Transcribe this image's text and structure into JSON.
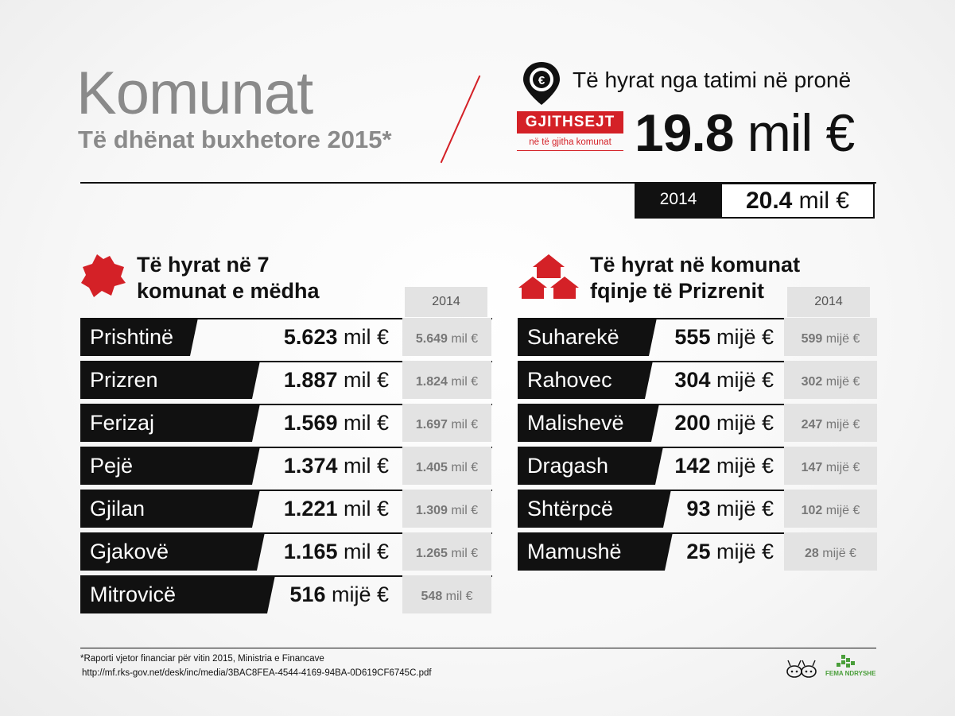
{
  "header": {
    "title": "Komunat",
    "subtitle": "Të dhënat buxhetore 2015*",
    "property_title": "Të hyrat nga tatimi në pronë",
    "total_label": "GJITHSEJT",
    "total_sublabel": "në të gjitha komunat",
    "total_number": "19.8",
    "total_unit": " mil €",
    "prev_year": "2014",
    "prev_number": "20.4",
    "prev_unit": " mil €"
  },
  "left_section": {
    "title_line1": "Të hyrat në 7",
    "title_line2": "komunat e mëdha",
    "year_label": "2014",
    "rows": [
      {
        "name": "Prishtinë",
        "value": "5.623",
        "unit": " mil €",
        "prev": "5.649",
        "prev_unit": " mil €"
      },
      {
        "name": "Prizren",
        "value": "1.887",
        "unit": " mil €",
        "prev": "1.824",
        "prev_unit": " mil €"
      },
      {
        "name": "Ferizaj",
        "value": "1.569",
        "unit": " mil €",
        "prev": "1.697",
        "prev_unit": " mil €"
      },
      {
        "name": "Pejë",
        "value": "1.374",
        "unit": " mil €",
        "prev": "1.405",
        "prev_unit": " mil €"
      },
      {
        "name": "Gjilan",
        "value": "1.221",
        "unit": " mil €",
        "prev": "1.309",
        "prev_unit": " mil €"
      },
      {
        "name": "Gjakovë",
        "value": "1.165",
        "unit": " mil €",
        "prev": "1.265",
        "prev_unit": " mil €"
      },
      {
        "name": "Mitrovicë",
        "value": "516",
        "unit": " mijë €",
        "prev": "548",
        "prev_unit": " mil €"
      }
    ]
  },
  "right_section": {
    "title_line1": "Të hyrat në komunat",
    "title_line2": "fqinje të Prizrenit",
    "year_label": "2014",
    "rows": [
      {
        "name": "Suharekë",
        "value": "555",
        "unit": " mijë €",
        "prev": "599",
        "prev_unit": " mijë €"
      },
      {
        "name": "Rahovec",
        "value": "304",
        "unit": " mijë €",
        "prev": "302",
        "prev_unit": " mijë €"
      },
      {
        "name": "Malishevë",
        "value": "200",
        "unit": " mijë €",
        "prev": "247",
        "prev_unit": " mijë €"
      },
      {
        "name": "Dragash",
        "value": "142",
        "unit": " mijë €",
        "prev": "147",
        "prev_unit": " mijë €"
      },
      {
        "name": "Shtërpcë",
        "value": "93",
        "unit": " mijë €",
        "prev": "102",
        "prev_unit": " mijë €"
      },
      {
        "name": "Mamushë",
        "value": "25",
        "unit": " mijë €",
        "prev": "28",
        "prev_unit": " mijë €"
      }
    ]
  },
  "footer": {
    "source": "*Raporti vjetor financiar për vitin 2015, Ministria e Financave",
    "url": "http://mf.rks-gov.net/desk/inc/media/3BAC8FEA-4544-4169-94BA-0D619CF6745C.pdf",
    "logo1_icon": "ants-logo-icon",
    "logo2_icon": "fema-logo-icon",
    "logo2_text": "FEMA NDRYSHE"
  },
  "colors": {
    "accent": "#d42127",
    "dark": "#111111",
    "muted": "#8a8a8a",
    "panel": "#e3e3e3"
  }
}
